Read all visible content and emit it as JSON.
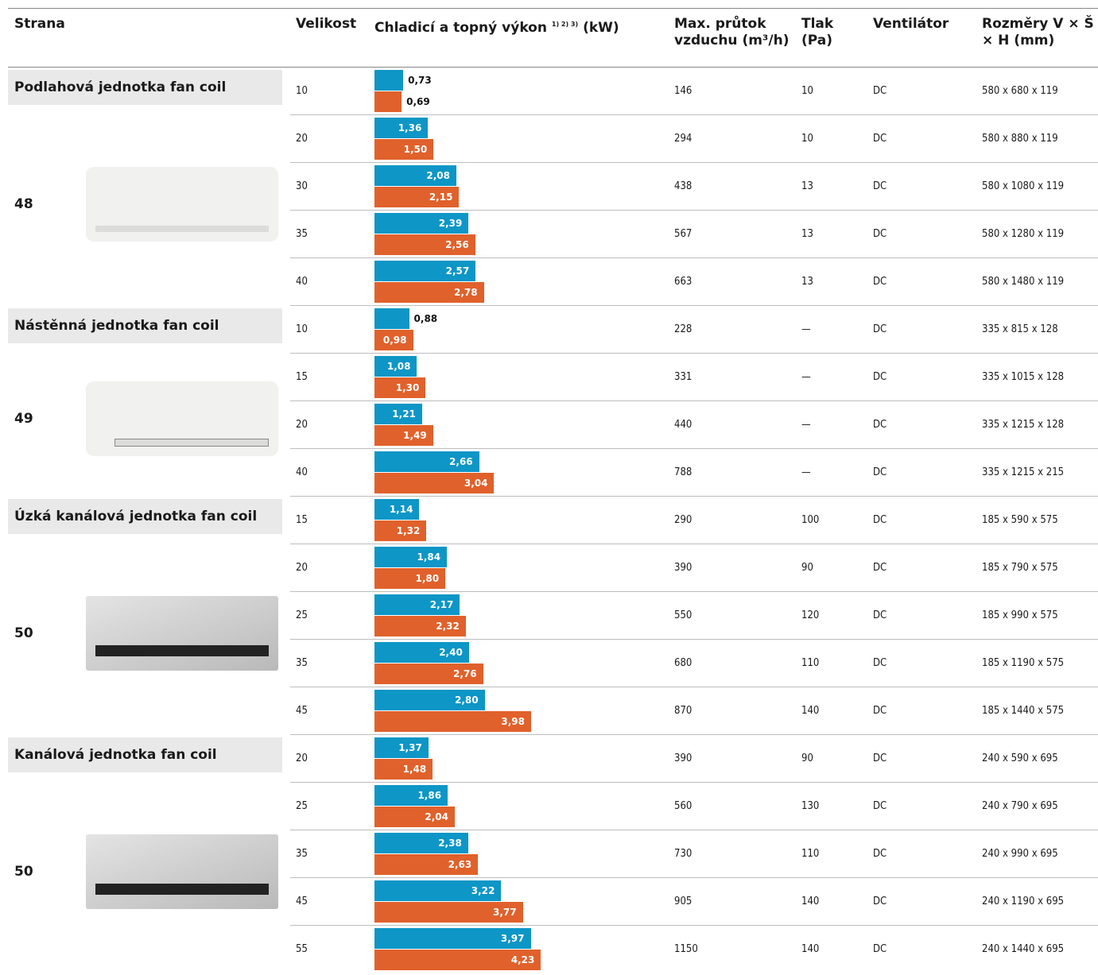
{
  "header": {
    "columns": [
      "Strana",
      "Velikost",
      {
        "text": "Chladicí a topný výkon",
        "sup": "1) 2) 3)",
        "unit": "(kW)"
      },
      "Max. průtok vzduchu (m³/h)",
      "Tlak (Pa)",
      "Ventilátor",
      "Rozměry V × Š × H (mm)"
    ]
  },
  "bar_colors": {
    "cooling": "#0d96c6",
    "heating": "#e0612b"
  },
  "groups": [
    {
      "title": "Podlahová jednotka fan coil",
      "page": "48",
      "rows": [
        {
          "size": 10,
          "cooling": {
            "value": 0.73,
            "label": "0,73"
          },
          "heating": {
            "value": 0.69,
            "label": "0,69"
          },
          "airflow": 146,
          "pressure": 10,
          "fan": "DC",
          "dimensions": "580 x 680 x 119"
        },
        {
          "size": 20,
          "cooling": {
            "value": 1.36,
            "label": "1,36"
          },
          "heating": {
            "value": 1.5,
            "label": "1,50"
          },
          "airflow": 294,
          "pressure": 10,
          "fan": "DC",
          "dimensions": "580 x 880 x 119"
        },
        {
          "size": 30,
          "cooling": {
            "value": 2.08,
            "label": "2,08"
          },
          "heating": {
            "value": 2.15,
            "label": "2,15"
          },
          "airflow": 438,
          "pressure": 13,
          "fan": "DC",
          "dimensions": "580 x 1080 x 119"
        },
        {
          "size": 35,
          "cooling": {
            "value": 2.39,
            "label": "2,39"
          },
          "heating": {
            "value": 2.56,
            "label": "2,56"
          },
          "airflow": 567,
          "pressure": 13,
          "fan": "DC",
          "dimensions": "580 x 1280 x 119"
        },
        {
          "size": 40,
          "cooling": {
            "value": 2.57,
            "label": "2,57"
          },
          "heating": {
            "value": 2.78,
            "label": "2,78"
          },
          "airflow": 663,
          "pressure": 13,
          "fan": "DC",
          "dimensions": "580 x 1480 x 119"
        }
      ]
    },
    {
      "title": "Nástěnná jednotka fan coil",
      "page": "49",
      "rows": [
        {
          "size": 10,
          "cooling": {
            "value": 0.88,
            "label": "0,88"
          },
          "heating": {
            "value": 0.98,
            "label": "0,98"
          },
          "airflow": 228,
          "pressure": "—",
          "fan": "DC",
          "dimensions": "335 x 815 x 128"
        },
        {
          "size": 15,
          "cooling": {
            "value": 1.08,
            "label": "1,08"
          },
          "heating": {
            "value": 1.3,
            "label": "1,30"
          },
          "airflow": 331,
          "pressure": "—",
          "fan": "DC",
          "dimensions": "335 x 1015 x 128"
        },
        {
          "size": 20,
          "cooling": {
            "value": 1.21,
            "label": "1,21"
          },
          "heating": {
            "value": 1.49,
            "label": "1,49"
          },
          "airflow": 440,
          "pressure": "—",
          "fan": "DC",
          "dimensions": "335 x 1215 x 128"
        },
        {
          "size": 40,
          "cooling": {
            "value": 2.66,
            "label": "2,66"
          },
          "heating": {
            "value": 3.04,
            "label": "3,04"
          },
          "airflow": 788,
          "pressure": "—",
          "fan": "DC",
          "dimensions": "335 x 1215 x 215"
        }
      ]
    },
    {
      "title": "Úzká kanálová jednotka fan coil",
      "page": "50",
      "rows": [
        {
          "size": 15,
          "cooling": {
            "value": 1.14,
            "label": "1,14"
          },
          "heating": {
            "value": 1.32,
            "label": "1,32"
          },
          "airflow": 290,
          "pressure": 100,
          "fan": "DC",
          "dimensions": "185 x 590 x 575"
        },
        {
          "size": 20,
          "cooling": {
            "value": 1.84,
            "label": "1,84"
          },
          "heating": {
            "value": 1.8,
            "label": "1,80"
          },
          "airflow": 390,
          "pressure": 90,
          "fan": "DC",
          "dimensions": "185 x 790 x 575"
        },
        {
          "size": 25,
          "cooling": {
            "value": 2.17,
            "label": "2,17"
          },
          "heating": {
            "value": 2.32,
            "label": "2,32"
          },
          "airflow": 550,
          "pressure": 120,
          "fan": "DC",
          "dimensions": "185 x 990 x 575"
        },
        {
          "size": 35,
          "cooling": {
            "value": 2.4,
            "label": "2,40"
          },
          "heating": {
            "value": 2.76,
            "label": "2,76"
          },
          "airflow": 680,
          "pressure": 110,
          "fan": "DC",
          "dimensions": "185 x 1190 x 575"
        },
        {
          "size": 45,
          "cooling": {
            "value": 2.8,
            "label": "2,80"
          },
          "heating": {
            "value": 3.98,
            "label": "3,98"
          },
          "airflow": 870,
          "pressure": 140,
          "fan": "DC",
          "dimensions": "185 x 1440 x 575"
        }
      ]
    },
    {
      "title": "Kanálová jednotka fan coil",
      "page": "50",
      "rows": [
        {
          "size": 20,
          "cooling": {
            "value": 1.37,
            "label": "1,37"
          },
          "heating": {
            "value": 1.48,
            "label": "1,48"
          },
          "airflow": 390,
          "pressure": 90,
          "fan": "DC",
          "dimensions": "240 x 590 x 695"
        },
        {
          "size": 25,
          "cooling": {
            "value": 1.86,
            "label": "1,86"
          },
          "heating": {
            "value": 2.04,
            "label": "2,04"
          },
          "airflow": 560,
          "pressure": 130,
          "fan": "DC",
          "dimensions": "240 x 790 x 695"
        },
        {
          "size": 35,
          "cooling": {
            "value": 2.38,
            "label": "2,38"
          },
          "heating": {
            "value": 2.63,
            "label": "2,63"
          },
          "airflow": 730,
          "pressure": 110,
          "fan": "DC",
          "dimensions": "240 x 990 x 695"
        },
        {
          "size": 45,
          "cooling": {
            "value": 3.22,
            "label": "3,22"
          },
          "heating": {
            "value": 3.77,
            "label": "3,77"
          },
          "airflow": 905,
          "pressure": 140,
          "fan": "DC",
          "dimensions": "240 x 1190 x 695"
        },
        {
          "size": 55,
          "cooling": {
            "value": 3.97,
            "label": "3,97"
          },
          "heating": {
            "value": 4.23,
            "label": "4,23"
          },
          "airflow": 1150,
          "pressure": 140,
          "fan": "DC",
          "dimensions": "240 x 1440 x 695"
        }
      ]
    }
  ]
}
